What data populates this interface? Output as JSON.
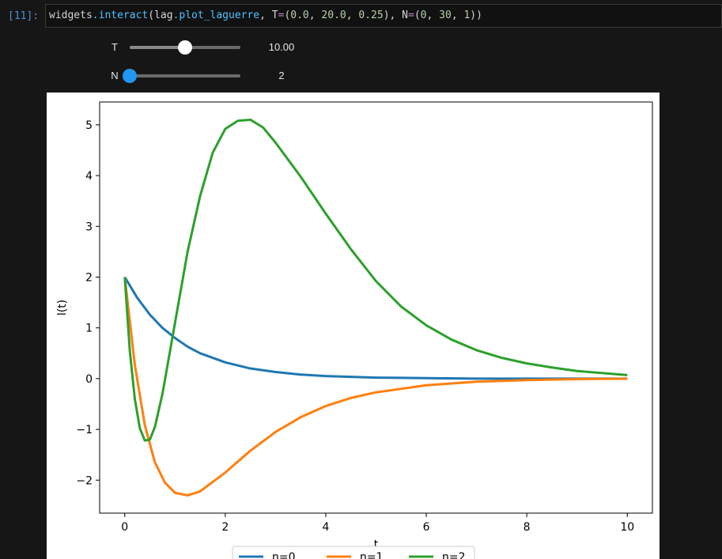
{
  "cell": {
    "prompt": "[11]:",
    "code_tokens": [
      {
        "text": "widgets",
        "cls": "tok-plain"
      },
      {
        "text": ".interact",
        "cls": "tok-attr"
      },
      {
        "text": "(lag",
        "cls": "tok-plain"
      },
      {
        "text": ".plot_laguerre",
        "cls": "tok-attr"
      },
      {
        "text": ", T",
        "cls": "tok-plain"
      },
      {
        "text": "=",
        "cls": "tok-op"
      },
      {
        "text": "(",
        "cls": "tok-plain"
      },
      {
        "text": "0.0",
        "cls": "tok-num"
      },
      {
        "text": ", ",
        "cls": "tok-plain"
      },
      {
        "text": "20.0",
        "cls": "tok-num"
      },
      {
        "text": ", ",
        "cls": "tok-plain"
      },
      {
        "text": "0.25",
        "cls": "tok-num"
      },
      {
        "text": "), N",
        "cls": "tok-plain"
      },
      {
        "text": "=",
        "cls": "tok-op"
      },
      {
        "text": "(",
        "cls": "tok-plain"
      },
      {
        "text": "0",
        "cls": "tok-num"
      },
      {
        "text": ", ",
        "cls": "tok-plain"
      },
      {
        "text": "30",
        "cls": "tok-num"
      },
      {
        "text": ", ",
        "cls": "tok-plain"
      },
      {
        "text": "1",
        "cls": "tok-num"
      },
      {
        "text": "))",
        "cls": "tok-plain"
      }
    ]
  },
  "sliders": {
    "T": {
      "label": "T",
      "value": "10.00",
      "fraction": 0.5,
      "fill_color": "#8a8a8a",
      "thumb_color": "#ffffff"
    },
    "N": {
      "label": "N",
      "value": "2",
      "fraction": 0.0,
      "fill_color": "#2196f3",
      "thumb_color": "#2196f3"
    }
  },
  "chart_data": {
    "type": "line",
    "xlabel": "t",
    "ylabel": "l(t)",
    "xlim": [
      -0.5,
      10.5
    ],
    "ylim": [
      -2.65,
      5.45
    ],
    "xticks": [
      0,
      2,
      4,
      6,
      8,
      10
    ],
    "yticks": [
      -2,
      -1,
      0,
      1,
      2,
      3,
      4,
      5
    ],
    "ytick_labels": [
      "−2",
      "−1",
      "0",
      "1",
      "2",
      "3",
      "4",
      "5"
    ],
    "grid": false,
    "legend_position": "bottom",
    "series": [
      {
        "name": "n=0",
        "color": "#1f77b4",
        "x": [
          0,
          0.25,
          0.5,
          0.75,
          1,
          1.25,
          1.5,
          2,
          2.5,
          3,
          3.5,
          4,
          5,
          6,
          7,
          8,
          9,
          10
        ],
        "y": [
          2.0,
          1.59,
          1.26,
          1.0,
          0.8,
          0.63,
          0.5,
          0.32,
          0.2,
          0.13,
          0.08,
          0.05,
          0.02,
          0.01,
          0.0,
          0.0,
          0.0,
          0.0
        ]
      },
      {
        "name": "n=1",
        "color": "#ff7f0e",
        "x": [
          0,
          0.2,
          0.4,
          0.6,
          0.8,
          1.0,
          1.25,
          1.5,
          2,
          2.5,
          3,
          3.5,
          4,
          4.5,
          5,
          6,
          7,
          8,
          9,
          10
        ],
        "y": [
          2.0,
          0.27,
          -0.92,
          -1.65,
          -2.05,
          -2.25,
          -2.3,
          -2.22,
          -1.85,
          -1.42,
          -1.05,
          -0.76,
          -0.54,
          -0.38,
          -0.27,
          -0.13,
          -0.06,
          -0.03,
          -0.01,
          0.0
        ]
      },
      {
        "name": "n=2",
        "color": "#2ca02c",
        "x": [
          0,
          0.1,
          0.2,
          0.3,
          0.4,
          0.5,
          0.6,
          0.75,
          1.0,
          1.25,
          1.5,
          1.75,
          2.0,
          2.25,
          2.5,
          2.75,
          3.0,
          3.5,
          4.0,
          4.5,
          5.0,
          5.5,
          6.0,
          6.5,
          7.0,
          7.5,
          8.0,
          8.5,
          9.0,
          9.5,
          10.0
        ],
        "y": [
          2.0,
          0.55,
          -0.4,
          -0.98,
          -1.22,
          -1.2,
          -0.95,
          -0.3,
          1.1,
          2.5,
          3.6,
          4.45,
          4.92,
          5.08,
          5.1,
          4.95,
          4.65,
          3.98,
          3.25,
          2.55,
          1.92,
          1.42,
          1.05,
          0.77,
          0.56,
          0.41,
          0.3,
          0.22,
          0.15,
          0.11,
          0.07
        ]
      }
    ]
  }
}
